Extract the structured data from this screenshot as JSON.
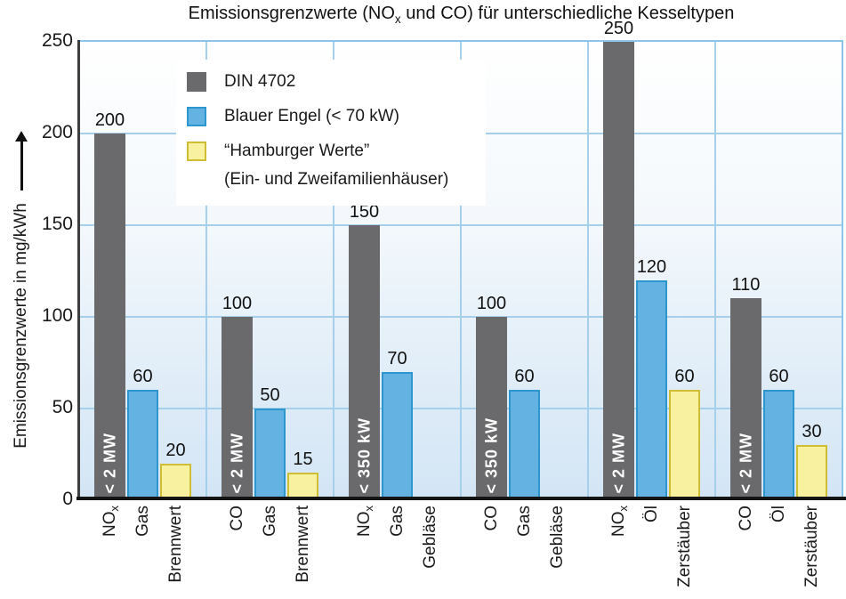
{
  "chart_data": {
    "type": "bar",
    "title": "Emissionsgrenzwerte (NO_x und CO) für unterschiedliche Kesseltypen",
    "ylabel": "Emissionsgrenzwerte in mg/kWh",
    "ylim": [
      0,
      250
    ],
    "yticks": [
      0,
      50,
      100,
      150,
      200,
      250
    ],
    "grid": true,
    "legend_position": "upper-left-inside",
    "legend": [
      {
        "label": "DIN 4702",
        "label2": "",
        "color": "#6a6a6c",
        "border": "#6a6a6c"
      },
      {
        "label": "Blauer Engel (< 70 kW)",
        "label2": "",
        "color": "#64b2e2",
        "border": "#2d96cf"
      },
      {
        "label": "“Hamburger Werte”",
        "label2": "(Ein- und Zweifamilienhäuser)",
        "color": "#f8f2a0",
        "border": "#cfbd33"
      }
    ],
    "series_colors": [
      {
        "name": "DIN 4702",
        "fill": "#6a6a6c",
        "border": "#6a6a6c"
      },
      {
        "name": "Blauer Engel (< 70 kW)",
        "fill": "#64b2e2",
        "border": "#2d96cf"
      },
      {
        "name": "Hamburger Werte",
        "fill": "#f8f2a0",
        "border": "#cfbd33"
      }
    ],
    "groups": [
      {
        "x_labels": [
          "NO_x",
          "Gas",
          "Brennwert"
        ],
        "values": [
          200,
          60,
          20
        ],
        "capacity_label": "< 2 MW"
      },
      {
        "x_labels": [
          "CO",
          "Gas",
          "Brennwert"
        ],
        "values": [
          100,
          50,
          15
        ],
        "capacity_label": "< 2 MW"
      },
      {
        "x_labels": [
          "NO_x",
          "Gas",
          "Gebläse"
        ],
        "values": [
          150,
          70,
          null
        ],
        "capacity_label": "< 350 kW"
      },
      {
        "x_labels": [
          "CO",
          "Gas",
          "Gebläse"
        ],
        "values": [
          100,
          60,
          null
        ],
        "capacity_label": "< 350 kW"
      },
      {
        "x_labels": [
          "NO_x",
          "Öl",
          "Zerstäuber"
        ],
        "values": [
          250,
          120,
          60
        ],
        "capacity_label": "< 2 MW"
      },
      {
        "x_labels": [
          "CO",
          "Öl",
          "Zerstäuber"
        ],
        "values": [
          110,
          60,
          30
        ],
        "capacity_label": "< 2 MW"
      }
    ],
    "colors": {
      "grid": "#a6cfec",
      "plot_border": "#8cc5e9",
      "axis_x": "#141414",
      "axis_y": "#3e3e40",
      "bg_gradient_top": "#ffffff",
      "bg_gradient_bottom": "#d3e5f5",
      "text": "#1a1a1a"
    }
  }
}
